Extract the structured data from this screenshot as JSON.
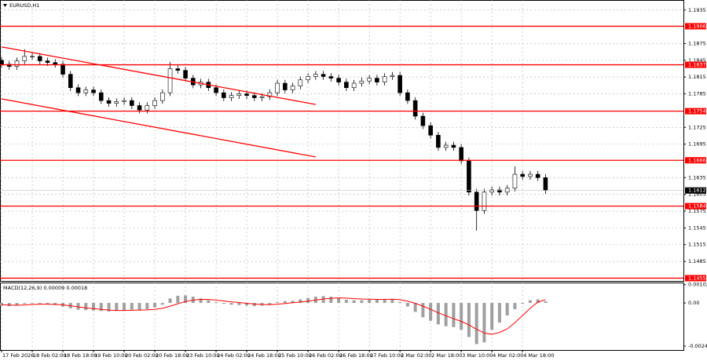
{
  "chart_data": {
    "type": "candlestick",
    "title": "EURUSD,H1",
    "x": [
      0,
      4,
      8,
      12,
      16,
      20,
      24,
      28,
      32,
      36,
      40,
      44,
      48,
      52,
      56,
      60,
      64,
      68,
      72,
      76,
      80,
      84,
      88,
      92,
      96,
      100,
      104,
      108,
      112,
      116,
      120,
      124,
      128,
      132,
      136,
      140,
      144,
      148,
      152,
      156,
      160,
      164,
      168,
      172,
      176,
      180,
      184,
      188,
      192,
      196,
      200,
      204,
      208,
      212,
      216,
      220,
      224,
      228,
      232,
      236,
      240,
      244,
      248,
      252,
      256,
      260,
      264,
      268,
      272,
      276,
      280,
      284
    ],
    "open": [
      1.1845,
      1.1838,
      1.1834,
      1.1844,
      1.1852,
      1.1852,
      1.1844,
      1.1841,
      1.1838,
      1.182,
      1.1796,
      1.1787,
      1.1792,
      1.1787,
      1.1773,
      1.1768,
      1.1771,
      1.1773,
      1.1764,
      1.1756,
      1.1764,
      1.1773,
      1.1787,
      1.183,
      1.1827,
      1.1813,
      1.1801,
      1.1806,
      1.1796,
      1.1787,
      1.1778,
      1.1782,
      1.1785,
      1.1782,
      1.1778,
      1.178,
      1.1787,
      1.1804,
      1.1792,
      1.1799,
      1.181,
      1.1816,
      1.182,
      1.1816,
      1.1813,
      1.1806,
      1.1796,
      1.1804,
      1.1808,
      1.1813,
      1.1806,
      1.1816,
      1.1818,
      1.1787,
      1.1773,
      1.1745,
      1.1728,
      1.1711,
      1.1689,
      1.1693,
      1.1689,
      1.1665,
      1.1609,
      1.1576,
      1.1609,
      1.1613,
      1.1609,
      1.1616,
      1.1641,
      1.1637,
      1.1641,
      1.1635
    ],
    "high": [
      1.1851,
      1.1844,
      1.185,
      1.1865,
      1.1858,
      1.1858,
      1.185,
      1.1847,
      1.1844,
      1.1826,
      1.1802,
      1.1798,
      1.1798,
      1.1793,
      1.1779,
      1.1777,
      1.1779,
      1.1779,
      1.177,
      1.177,
      1.1779,
      1.1793,
      1.1842,
      1.1836,
      1.1833,
      1.1819,
      1.1812,
      1.1812,
      1.1802,
      1.1793,
      1.1788,
      1.1791,
      1.1791,
      1.1788,
      1.1786,
      1.1793,
      1.181,
      1.181,
      1.1805,
      1.1816,
      1.1822,
      1.1826,
      1.1826,
      1.1822,
      1.1819,
      1.1812,
      1.181,
      1.1814,
      1.1819,
      1.1819,
      1.1822,
      1.1824,
      1.1824,
      1.1793,
      1.1779,
      1.1751,
      1.1734,
      1.1717,
      1.1699,
      1.1699,
      1.1695,
      1.1671,
      1.1615,
      1.1615,
      1.1619,
      1.1619,
      1.1622,
      1.1655,
      1.1647,
      1.1647,
      1.1647,
      1.1641
    ],
    "low": [
      1.1832,
      1.1828,
      1.1828,
      1.1838,
      1.1846,
      1.1838,
      1.1835,
      1.1832,
      1.1814,
      1.179,
      1.1781,
      1.1781,
      1.1781,
      1.1767,
      1.1762,
      1.1762,
      1.1765,
      1.1758,
      1.175,
      1.175,
      1.1758,
      1.1767,
      1.1781,
      1.1821,
      1.1807,
      1.1795,
      1.1795,
      1.179,
      1.1781,
      1.1772,
      1.1772,
      1.1776,
      1.1776,
      1.1772,
      1.1772,
      1.1774,
      1.1781,
      1.1786,
      1.1786,
      1.1793,
      1.1804,
      1.181,
      1.181,
      1.1807,
      1.18,
      1.179,
      1.179,
      1.1798,
      1.1802,
      1.18,
      1.18,
      1.181,
      1.1781,
      1.1767,
      1.1739,
      1.1722,
      1.1705,
      1.1683,
      1.1683,
      1.1683,
      1.1659,
      1.1603,
      1.154,
      1.157,
      1.1603,
      1.1603,
      1.1603,
      1.161,
      1.1631,
      1.1631,
      1.1629,
      1.1606
    ],
    "close": [
      1.1838,
      1.1834,
      1.1844,
      1.1852,
      1.1852,
      1.1844,
      1.1841,
      1.1838,
      1.182,
      1.1796,
      1.1787,
      1.1792,
      1.1787,
      1.1773,
      1.1768,
      1.1771,
      1.1773,
      1.1764,
      1.1756,
      1.1764,
      1.1773,
      1.1787,
      1.183,
      1.1827,
      1.1813,
      1.1801,
      1.1806,
      1.1796,
      1.1787,
      1.1778,
      1.1782,
      1.1785,
      1.1782,
      1.1778,
      1.178,
      1.1787,
      1.1804,
      1.1792,
      1.1799,
      1.181,
      1.1816,
      1.182,
      1.1816,
      1.1813,
      1.1806,
      1.1796,
      1.1804,
      1.1808,
      1.1813,
      1.1806,
      1.1816,
      1.1818,
      1.1787,
      1.1773,
      1.1745,
      1.1728,
      1.1711,
      1.1689,
      1.1693,
      1.1689,
      1.1665,
      1.1609,
      1.1576,
      1.1609,
      1.1613,
      1.1609,
      1.1616,
      1.1641,
      1.1637,
      1.1641,
      1.1635,
      1.1612
    ],
    "xlim": [
      0,
      356
    ],
    "xticks": [
      {
        "value": 0,
        "label": "17 Feb 2026"
      },
      {
        "value": 16,
        "label": "18 Feb 02:00"
      },
      {
        "value": 32,
        "label": "18 Feb 18:00"
      },
      {
        "value": 48,
        "label": "19 Feb 10:00"
      },
      {
        "value": 64,
        "label": "20 Feb 02:00"
      },
      {
        "value": 80,
        "label": "20 Feb 18:00"
      },
      {
        "value": 96,
        "label": "23 Feb 10:00"
      },
      {
        "value": 112,
        "label": "24 Feb 02:00"
      },
      {
        "value": 128,
        "label": "24 Feb 18:00"
      },
      {
        "value": 144,
        "label": "25 Feb 10:00"
      },
      {
        "value": 160,
        "label": "26 Feb 02:00"
      },
      {
        "value": 176,
        "label": "26 Feb 18:00"
      },
      {
        "value": 192,
        "label": "27 Feb 10:00"
      },
      {
        "value": 208,
        "label": "2 Mar 02:00"
      },
      {
        "value": 224,
        "label": "2 Mar 18:00"
      },
      {
        "value": 240,
        "label": "3 Mar 10:00"
      },
      {
        "value": 256,
        "label": "4 Mar 02:00"
      },
      {
        "value": 272,
        "label": "4 Mar 18:00"
      }
    ],
    "ylim": [
      1.145,
      1.1953
    ],
    "yticks": [
      1.1935,
      1.1875,
      1.1845,
      1.1815,
      1.1785,
      1.1725,
      1.1695,
      1.1635,
      1.1605,
      1.1575,
      1.1545,
      1.1515,
      1.1485
    ],
    "grid": true,
    "levels": {
      "color": "#ff0000",
      "values": [
        1.1906,
        1.1837,
        1.1754,
        1.1666,
        1.1584,
        1.1455
      ]
    },
    "current_price": 1.1612,
    "trendline_color": "#ff0000",
    "trendlines": [
      {
        "x": [
          0,
          164
        ],
        "y": [
          1.1869,
          1.1766
        ]
      },
      {
        "x": [
          0,
          164
        ],
        "y": [
          1.1776,
          1.1672
        ]
      }
    ],
    "macd": {
      "label": "MACD(12,26,9) 0.00009 0.00018",
      "histogram": [
        -0.00015,
        -0.00018,
        -0.00012,
        -5e-05,
        -3e-05,
        -5e-05,
        -8e-05,
        -0.00012,
        -0.0002,
        -0.0003,
        -0.00038,
        -0.0004,
        -0.00042,
        -0.00045,
        -0.00048,
        -0.00045,
        -0.0004,
        -0.00038,
        -0.0004,
        -0.00035,
        -0.00025,
        -0.0001,
        0.00025,
        0.0004,
        0.00042,
        0.00035,
        0.00025,
        0.00015,
        5e-05,
        -5e-05,
        -0.0001,
        -0.00012,
        -0.00015,
        -0.00018,
        -0.00015,
        -0.0001,
        5e-05,
        0.0001,
        0.00012,
        0.0002,
        0.00028,
        0.00035,
        0.00038,
        0.00035,
        0.00028,
        0.00018,
        0.00015,
        0.00015,
        0.00018,
        0.00018,
        0.0002,
        0.00022,
        5e-05,
        -0.0002,
        -0.0005,
        -0.0008,
        -0.001,
        -0.0012,
        -0.0013,
        -0.00135,
        -0.0015,
        -0.0019,
        -0.0023,
        -0.0022,
        -0.0015,
        -0.0011,
        -0.0007,
        -0.00035,
        -5e-05,
        0.00015,
        0.0002,
        9e-05
      ],
      "signal": [
        -0.0001,
        -0.00012,
        -0.00013,
        -0.00011,
        -9e-05,
        -7e-05,
        -7e-05,
        -8e-05,
        -0.00011,
        -0.00016,
        -0.00022,
        -0.00028,
        -0.00032,
        -0.00036,
        -0.0004,
        -0.00042,
        -0.00042,
        -0.00041,
        -0.0004,
        -0.00039,
        -0.00036,
        -0.0003,
        -0.00018,
        -5e-05,
        8e-05,
        0.00016,
        0.0002,
        0.00019,
        0.00016,
        0.00011,
        6e-05,
        2e-05,
        -2e-05,
        -6e-05,
        -9e-05,
        -0.0001,
        -7e-05,
        -3e-05,
        1e-05,
        5e-05,
        0.0001,
        0.00016,
        0.00022,
        0.00026,
        0.00028,
        0.00027,
        0.00024,
        0.00022,
        0.00021,
        0.0002,
        0.0002,
        0.00021,
        0.00018,
        0.0001,
        -2e-05,
        -0.00018,
        -0.00036,
        -0.00055,
        -0.00072,
        -0.00088,
        -0.00103,
        -0.00123,
        -0.00147,
        -0.00168,
        -0.00175,
        -0.00165,
        -0.00145,
        -0.0011,
        -0.0007,
        -0.0003,
        5e-05,
        0.00018
      ],
      "signal_color": "#ff0000",
      "ylim": [
        -0.00263,
        0.00114
      ],
      "yticks": [
        0.00102,
        {
          "value": 0,
          "label": "0.00"
        },
        -0.00241
      ]
    }
  }
}
